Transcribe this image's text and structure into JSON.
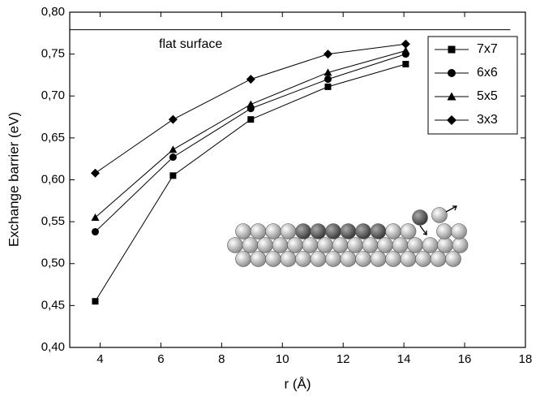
{
  "chart_data": {
    "type": "line",
    "x_label": "r (Å)",
    "y_label": "Exchange barrier (eV)",
    "x": [
      3.84,
      6.4,
      8.96,
      11.5,
      14.06
    ],
    "series": [
      {
        "name": "7x7",
        "color": "#000000",
        "marker": "square",
        "values": [
          0.455,
          0.605,
          0.672,
          0.711,
          0.738
        ]
      },
      {
        "name": "6x6",
        "color": "#000000",
        "marker": "circle",
        "values": [
          0.538,
          0.627,
          0.685,
          0.72,
          0.75
        ]
      },
      {
        "name": "5x5",
        "color": "#000000",
        "marker": "triangle",
        "values": [
          0.555,
          0.636,
          0.69,
          0.728,
          0.754
        ]
      },
      {
        "name": "3x3",
        "color": "#000000",
        "marker": "diamond",
        "values": [
          0.608,
          0.672,
          0.72,
          0.75,
          0.762
        ]
      }
    ],
    "flat_surface": {
      "label": "flat surface",
      "x": [
        3,
        17.5
      ],
      "values": [
        0.779,
        0.779
      ]
    },
    "xlim": [
      3,
      18
    ],
    "xticks": [
      4,
      6,
      8,
      10,
      12,
      14,
      16,
      18
    ],
    "ylim": [
      0.4,
      0.8
    ],
    "yticks": [
      {
        "value": 0.4,
        "label": "0,40"
      },
      {
        "value": 0.45,
        "label": "0,45"
      },
      {
        "value": 0.5,
        "label": "0,50"
      },
      {
        "value": 0.55,
        "label": "0,55"
      },
      {
        "value": 0.6,
        "label": "0,60"
      },
      {
        "value": 0.65,
        "label": "0,65"
      },
      {
        "value": 0.7,
        "label": "0,70"
      },
      {
        "value": 0.75,
        "label": "0,75"
      },
      {
        "value": 0.8,
        "label": "0,80"
      }
    ],
    "legend": "upper right",
    "grid": false
  }
}
